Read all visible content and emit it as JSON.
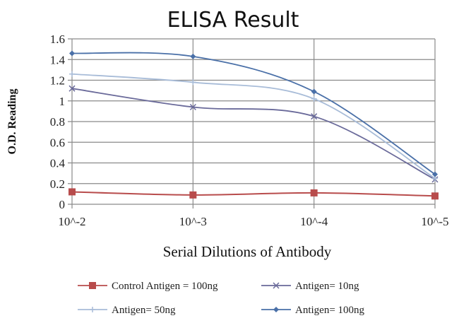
{
  "chart_data": {
    "type": "line",
    "title": "ELISA Result",
    "xlabel": "Serial Dilutions  of Antibody",
    "ylabel": "O.D. Reading",
    "categories": [
      "10^-2",
      "10^-3",
      "10^-4",
      "10^-5"
    ],
    "ylim": [
      0,
      1.6
    ],
    "yticks": [
      "0",
      "0.2",
      "0.4",
      "0.6",
      "0.8",
      "1",
      "1.2",
      "1.4",
      "1.6"
    ],
    "grid": true,
    "legend_position": "bottom",
    "series": [
      {
        "name": "Control Antigen = 100ng",
        "values": [
          0.12,
          0.09,
          0.11,
          0.08
        ],
        "color": "#b84c4c",
        "marker": "square"
      },
      {
        "name": "Antigen= 10ng",
        "values": [
          1.12,
          0.94,
          0.85,
          0.24
        ],
        "color": "#6a6a9a",
        "marker": "x"
      },
      {
        "name": "Antigen= 50ng",
        "values": [
          1.26,
          1.18,
          1.02,
          0.25
        ],
        "color": "#a8bcd8",
        "marker": "plus"
      },
      {
        "name": "Antigen= 100ng",
        "values": [
          1.46,
          1.43,
          1.09,
          0.29
        ],
        "color": "#4a70a8",
        "marker": "diamond"
      }
    ]
  }
}
